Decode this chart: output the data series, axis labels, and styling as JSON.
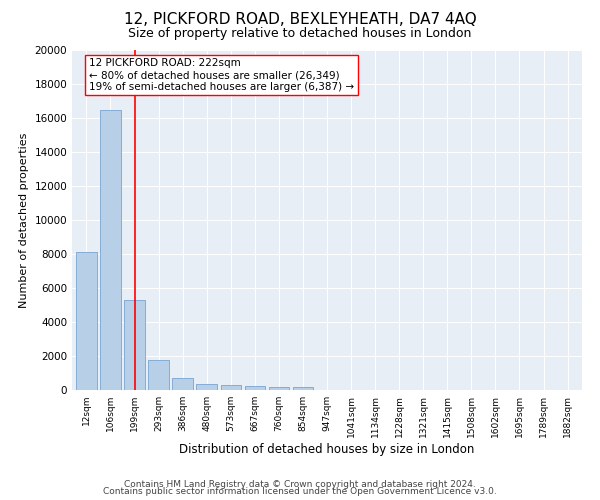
{
  "title": "12, PICKFORD ROAD, BEXLEYHEATH, DA7 4AQ",
  "subtitle": "Size of property relative to detached houses in London",
  "xlabel": "Distribution of detached houses by size in London",
  "ylabel": "Number of detached properties",
  "categories": [
    "12sqm",
    "106sqm",
    "199sqm",
    "293sqm",
    "386sqm",
    "480sqm",
    "573sqm",
    "667sqm",
    "760sqm",
    "854sqm",
    "947sqm",
    "1041sqm",
    "1134sqm",
    "1228sqm",
    "1321sqm",
    "1415sqm",
    "1508sqm",
    "1602sqm",
    "1695sqm",
    "1789sqm",
    "1882sqm"
  ],
  "values": [
    8100,
    16500,
    5300,
    1750,
    700,
    350,
    270,
    220,
    170,
    200,
    0,
    0,
    0,
    0,
    0,
    0,
    0,
    0,
    0,
    0,
    0
  ],
  "bar_color": "#b8cfe8",
  "bar_edge_color": "#6699cc",
  "red_line_x": 2.0,
  "annotation_title": "12 PICKFORD ROAD: 222sqm",
  "annotation_line1": "← 80% of detached houses are smaller (26,349)",
  "annotation_line2": "19% of semi-detached houses are larger (6,387) →",
  "footer_line1": "Contains HM Land Registry data © Crown copyright and database right 2024.",
  "footer_line2": "Contains public sector information licensed under the Open Government Licence v3.0.",
  "ylim": [
    0,
    20000
  ],
  "plot_bg_color": "#e8eef5",
  "title_fontsize": 11,
  "subtitle_fontsize": 9,
  "xlabel_fontsize": 8.5,
  "ylabel_fontsize": 8,
  "tick_fontsize": 6.5,
  "footer_fontsize": 6.5,
  "annotation_fontsize": 7.5
}
